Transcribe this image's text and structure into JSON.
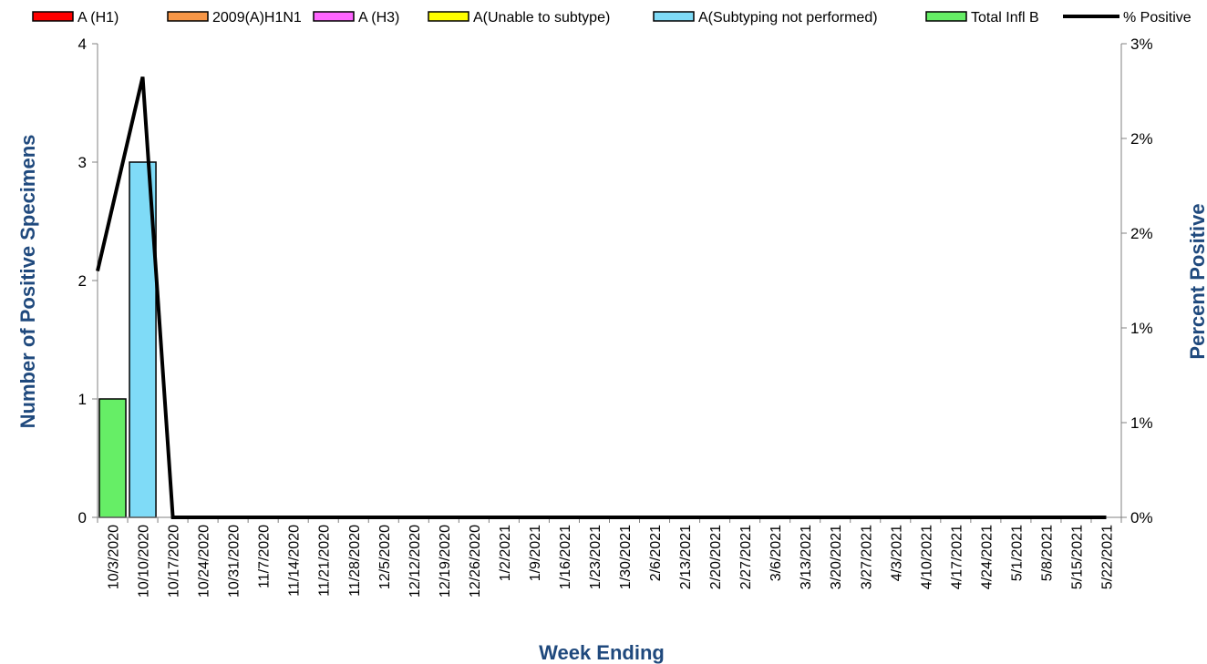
{
  "chart_data": {
    "type": "bar",
    "xlabel": "Week Ending",
    "ylabel": "Number of  Positive Specimens",
    "y2label": "Percent Positive",
    "ylim": [
      0,
      4
    ],
    "y2lim": [
      0,
      0.03
    ],
    "y_ticks": [
      "0",
      "1",
      "2",
      "3",
      "4"
    ],
    "y2_ticks": [
      "0%",
      "1%",
      "1%",
      "2%",
      "2%",
      "3%"
    ],
    "grid": false,
    "legend_position": "top",
    "categories": [
      "10/3/2020",
      "10/10/2020",
      "10/17/2020",
      "10/24/2020",
      "10/31/2020",
      "11/7/2020",
      "11/14/2020",
      "11/21/2020",
      "11/28/2020",
      "12/5/2020",
      "12/12/2020",
      "12/19/2020",
      "12/26/2020",
      "1/2/2021",
      "1/9/2021",
      "1/16/2021",
      "1/23/2021",
      "1/30/2021",
      "2/6/2021",
      "2/13/2021",
      "2/20/2021",
      "2/27/2021",
      "3/6/2021",
      "3/13/2021",
      "3/20/2021",
      "3/27/2021",
      "4/3/2021",
      "4/10/2021",
      "4/17/2021",
      "4/24/2021",
      "5/1/2021",
      "5/8/2021",
      "5/15/2021",
      "5/22/2021"
    ],
    "series": [
      {
        "name": "A (H1)",
        "type": "bar",
        "color": "#ff0000",
        "values": [
          0,
          0,
          0,
          0,
          0,
          0,
          0,
          0,
          0,
          0,
          0,
          0,
          0,
          0,
          0,
          0,
          0,
          0,
          0,
          0,
          0,
          0,
          0,
          0,
          0,
          0,
          0,
          0,
          0,
          0,
          0,
          0,
          0,
          0
        ]
      },
      {
        "name": "2009(A)H1N1",
        "type": "bar",
        "color": "#f79646",
        "values": [
          0,
          0,
          0,
          0,
          0,
          0,
          0,
          0,
          0,
          0,
          0,
          0,
          0,
          0,
          0,
          0,
          0,
          0,
          0,
          0,
          0,
          0,
          0,
          0,
          0,
          0,
          0,
          0,
          0,
          0,
          0,
          0,
          0,
          0
        ]
      },
      {
        "name": "A (H3)",
        "type": "bar",
        "color": "#ff66ff",
        "values": [
          0,
          0,
          0,
          0,
          0,
          0,
          0,
          0,
          0,
          0,
          0,
          0,
          0,
          0,
          0,
          0,
          0,
          0,
          0,
          0,
          0,
          0,
          0,
          0,
          0,
          0,
          0,
          0,
          0,
          0,
          0,
          0,
          0,
          0
        ]
      },
      {
        "name": "A(Unable to subtype)",
        "type": "bar",
        "color": "#ffff00",
        "values": [
          0,
          0,
          0,
          0,
          0,
          0,
          0,
          0,
          0,
          0,
          0,
          0,
          0,
          0,
          0,
          0,
          0,
          0,
          0,
          0,
          0,
          0,
          0,
          0,
          0,
          0,
          0,
          0,
          0,
          0,
          0,
          0,
          0,
          0
        ]
      },
      {
        "name": "A(Subtyping not performed)",
        "type": "bar",
        "color": "#7fdbf7",
        "values": [
          0,
          3,
          0,
          0,
          0,
          0,
          0,
          0,
          0,
          0,
          0,
          0,
          0,
          0,
          0,
          0,
          0,
          0,
          0,
          0,
          0,
          0,
          0,
          0,
          0,
          0,
          0,
          0,
          0,
          0,
          0,
          0,
          0,
          0
        ]
      },
      {
        "name": "Total Infl B",
        "type": "bar",
        "color": "#66ee66",
        "values": [
          1,
          0,
          0,
          0,
          0,
          0,
          0,
          0,
          0,
          0,
          0,
          0,
          0,
          0,
          0,
          0,
          0,
          0,
          0,
          0,
          0,
          0,
          0,
          0,
          0,
          0,
          0,
          0,
          0,
          0,
          0,
          0,
          0,
          0
        ]
      },
      {
        "name": "% Positive",
        "type": "line",
        "axis": "right",
        "color": "#000000",
        "values": [
          0.0156,
          0.0279,
          0,
          0,
          0,
          0,
          0,
          0,
          0,
          0,
          0,
          0,
          0,
          0,
          0,
          0,
          0,
          0,
          0,
          0,
          0,
          0,
          0,
          0,
          0,
          0,
          0,
          0,
          0,
          0,
          0,
          0,
          0,
          0
        ]
      }
    ]
  }
}
